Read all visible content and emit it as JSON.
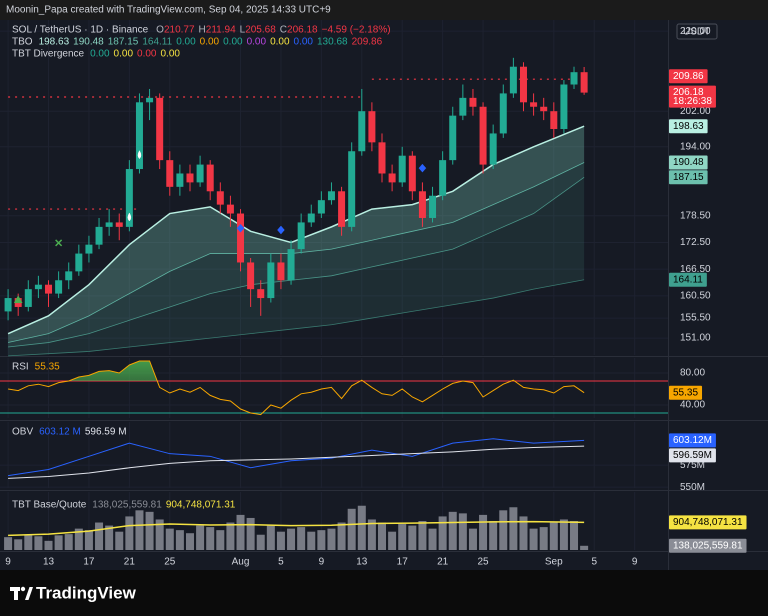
{
  "header": {
    "credit": "Moonin_Papa created with TradingView.com, Sep 04, 2025 14:33 UTC+9",
    "logo": "TradingView"
  },
  "chart_data": [
    {
      "type": "candlestick",
      "title": "SOL / TetherUS · 1D · Binance",
      "ohlc_legend": [
        [
          "O",
          "210.77"
        ],
        [
          "H",
          "211.94"
        ],
        [
          "L",
          "205.68"
        ],
        [
          "C",
          "206.18"
        ]
      ],
      "change": "−4.59 (−2.18%)",
      "open": [
        157,
        160,
        158,
        162,
        163,
        161,
        164,
        166,
        170,
        172,
        176,
        177,
        176,
        189,
        204,
        205,
        191,
        185,
        188,
        186,
        190,
        184,
        181,
        179,
        168,
        162,
        160,
        168,
        164,
        171,
        177,
        179,
        182,
        184,
        176,
        193,
        202,
        195,
        188,
        186,
        192,
        184,
        178,
        183,
        191,
        201,
        205,
        203,
        190,
        197,
        206,
        212,
        204,
        203,
        202,
        198,
        208,
        210.77
      ],
      "high": [
        162,
        161,
        164,
        165,
        164,
        166,
        168,
        172,
        174,
        178,
        180,
        179,
        191,
        206,
        207,
        206,
        193,
        190,
        190,
        192,
        191,
        186,
        183,
        180,
        169,
        164,
        170,
        170,
        173,
        179,
        181,
        184,
        186,
        185,
        195,
        207,
        204,
        197,
        190,
        194,
        193,
        186,
        185,
        193,
        203,
        208,
        207,
        204,
        199,
        208,
        214,
        213,
        206,
        205,
        204,
        209,
        212,
        211.94
      ],
      "low": [
        155,
        156,
        157,
        160,
        158,
        160,
        162,
        165,
        168,
        171,
        174,
        173,
        175,
        188,
        200,
        189,
        183,
        183,
        184,
        185,
        182,
        179,
        176,
        166,
        158,
        156,
        159,
        162,
        163,
        170,
        176,
        178,
        181,
        174,
        175,
        192,
        193,
        186,
        184,
        185,
        182,
        176,
        177,
        182,
        190,
        200,
        201,
        188,
        189,
        196,
        205,
        202,
        201,
        200,
        196,
        197,
        207,
        205.68
      ],
      "close": [
        160,
        158,
        162,
        163,
        161,
        164,
        166,
        170,
        172,
        176,
        177,
        176,
        189,
        204,
        205,
        191,
        185,
        188,
        186,
        190,
        184,
        181,
        179,
        168,
        162,
        160,
        168,
        164,
        171,
        177,
        179,
        182,
        184,
        176,
        193,
        202,
        195,
        188,
        186,
        192,
        184,
        178,
        183,
        191,
        201,
        205,
        203,
        190,
        197,
        206,
        212,
        204,
        203,
        202,
        198,
        208,
        210.77,
        206.18
      ],
      "up_color": "#22ab94",
      "down_color": "#f23645",
      "xlim": [
        -0.8,
        65.3
      ],
      "xticks": [
        {
          "value": 0,
          "label": "9"
        },
        {
          "value": 4,
          "label": "13"
        },
        {
          "value": 8,
          "label": "17"
        },
        {
          "value": 12,
          "label": "21"
        },
        {
          "value": 16,
          "label": "25"
        },
        {
          "value": 23,
          "label": "Aug"
        },
        {
          "value": 27,
          "label": "5"
        },
        {
          "value": 31,
          "label": "9"
        },
        {
          "value": 35,
          "label": "13"
        },
        {
          "value": 39,
          "label": "17"
        },
        {
          "value": 43,
          "label": "21"
        },
        {
          "value": 47,
          "label": "25"
        },
        {
          "value": 54,
          "label": "Sep"
        },
        {
          "value": 58,
          "label": "5"
        },
        {
          "value": 62,
          "label": "9"
        }
      ],
      "ylim": [
        147.2,
        222.5
      ],
      "yticks": [
        {
          "value": 220,
          "label": "220.00"
        },
        {
          "value": 202,
          "label": "202.00"
        },
        {
          "value": 194,
          "label": "194.00"
        },
        {
          "value": 178.5,
          "label": "178.50"
        },
        {
          "value": 172.5,
          "label": "172.50"
        },
        {
          "value": 166.5,
          "label": "166.50"
        },
        {
          "value": 160.5,
          "label": "160.50"
        },
        {
          "value": 155.5,
          "label": "155.50"
        },
        {
          "value": 151,
          "label": "151.00"
        }
      ],
      "currency": "USDT",
      "indicators": [
        {
          "name": "TBO",
          "values": [
            "198.63",
            "190.48",
            "187.15",
            "164.11",
            "0.00",
            "0.00",
            "0.00",
            "0.00",
            "0.00",
            "0.00",
            "130.68",
            "209.86"
          ],
          "colors": [
            "#b9efe2",
            "#8fd6c4",
            "#6cc0ad",
            "#3fa08f",
            "#22ab94",
            "#f7a600",
            "#22ab94",
            "#b845e0",
            "#f5e342",
            "#2962ff",
            "#22ab94",
            "#f23645"
          ]
        },
        {
          "name": "TBT Divergence",
          "values": [
            "0.00",
            "0.00",
            "0.00",
            "0.00"
          ],
          "colors": [
            "#22ab94",
            "#f5e342",
            "#f23645",
            "#f5e342"
          ]
        }
      ],
      "bands": {
        "x": [
          0,
          4,
          8,
          12,
          16,
          20,
          24,
          28,
          32,
          36,
          40,
          44,
          48,
          52,
          57
        ],
        "series": [
          {
            "color": "#b9efe2",
            "values": [
              152,
              156,
              163,
              172,
              179,
              180.5,
              175,
              172.5,
              176,
              180,
              181,
              184,
              190,
              194,
              198.63
            ]
          },
          {
            "color": "#5fb3a2",
            "values": [
              150,
              152,
              156,
              161,
              166,
              170,
              170,
              170,
              171,
              173,
              175,
              177,
              181,
              185,
              190.48
            ]
          },
          {
            "color": "#4a9588",
            "values": [
              149,
              150,
              152,
              155,
              158,
              161,
              163,
              164,
              165,
              167,
              169,
              171,
              175,
              179,
              187.15
            ]
          },
          {
            "color": "#3a7a70",
            "values": [
              147,
              147.5,
              148,
              149,
              150,
              151,
              152,
              153,
              154,
              155.5,
              157,
              158.5,
              160,
              162,
              164.11
            ]
          }
        ],
        "fill_colors": [
          "rgba(120,200,180,0.32)",
          "rgba(90,170,155,0.24)",
          "rgba(70,140,130,0.17)"
        ]
      },
      "price_tags": [
        {
          "value": 209.86,
          "color": "#f23645",
          "text_color": "#ffffff"
        },
        {
          "value": 206.18,
          "color": "#f23645",
          "text_color": "#ffffff",
          "countdown": "18:26:38"
        },
        {
          "value": 198.63,
          "color": "#b9efe2",
          "text_color": "#000000"
        },
        {
          "value": 190.48,
          "color": "#8fd6c4",
          "text_color": "#000000"
        },
        {
          "value": 187.15,
          "color": "#6cc0ad",
          "text_color": "#000000"
        },
        {
          "value": 164.11,
          "color": "#3fa08f",
          "text_color": "#000000"
        }
      ],
      "levels": [
        {
          "value": 205.2,
          "from": 0,
          "to": 35,
          "color": "#f23645"
        },
        {
          "value": 209.2,
          "from": 36,
          "to": 57,
          "color": "#f23645"
        },
        {
          "value": 180,
          "from": 0,
          "to": 13,
          "color": "#f23645"
        }
      ],
      "markers": [
        {
          "shape": "drop",
          "x": 13,
          "y": 192,
          "color": "#ffffff"
        },
        {
          "shape": "drop",
          "x": 12,
          "y": 178,
          "color": "#ffffff"
        },
        {
          "shape": "cross",
          "x": 5,
          "y": 172.4,
          "color": "#4caf50"
        },
        {
          "shape": "triangle",
          "x": 1,
          "y": 159.6,
          "color": "#4caf50"
        },
        {
          "shape": "diamond",
          "x": 23,
          "y": 175.7,
          "color": "#2962ff"
        },
        {
          "shape": "diamond",
          "x": 27,
          "y": 175.3,
          "color": "#2962ff"
        },
        {
          "shape": "diamond",
          "x": 41,
          "y": 189.2,
          "color": "#2962ff"
        }
      ]
    },
    {
      "type": "line",
      "title": "RSI",
      "series": [
        {
          "color": "#f7a600",
          "values": [
            60,
            58,
            64,
            66,
            63,
            68,
            70,
            75,
            77,
            82,
            83,
            80,
            90,
            95,
            95,
            62,
            55,
            60,
            56,
            62,
            52,
            47,
            45,
            35,
            30,
            28,
            40,
            36,
            46,
            54,
            56,
            60,
            62,
            48,
            64,
            71,
            62,
            54,
            52,
            60,
            50,
            44,
            52,
            60,
            67,
            70,
            68,
            50,
            58,
            66,
            71,
            62,
            60,
            59,
            55,
            63,
            64,
            55.35
          ]
        }
      ],
      "ylim": [
        23.75,
        98.75
      ],
      "yticks": [
        {
          "value": 80,
          "label": "80.00"
        },
        {
          "value": 40,
          "label": "40.00"
        }
      ],
      "levels": [
        {
          "value": 70,
          "color": "#f23645"
        },
        {
          "value": 30,
          "color": "#22ab94"
        }
      ],
      "overbought_fill": "#4caf50"
    },
    {
      "type": "line",
      "title": "OBV",
      "x": [
        0,
        4,
        8,
        12,
        16,
        20,
        24,
        28,
        32,
        36,
        40,
        44,
        48,
        52,
        57
      ],
      "series": [
        {
          "color": "#2962ff",
          "values": [
            563,
            570,
            585,
            600,
            588,
            585,
            572,
            580,
            583,
            592,
            585,
            600,
            605,
            600,
            603.12
          ],
          "legend": "603.12 M",
          "tag_label": "603.12M",
          "tag_text_color": "#ffffff"
        },
        {
          "color": "#e0e3eb",
          "values": [
            560,
            562,
            566,
            572,
            577,
            580,
            581,
            582,
            584,
            586,
            588,
            590,
            593,
            595,
            596.59
          ],
          "legend": "596.59 M",
          "tag_label": "596.59M",
          "tag_text_color": "#000000"
        }
      ],
      "ylim": [
        549,
        624
      ],
      "yticks": [
        {
          "value": 575,
          "label": "575M"
        },
        {
          "value": 550,
          "label": "550M"
        }
      ]
    },
    {
      "type": "volume",
      "title": "TBT Base/Quote",
      "bars": {
        "color": "#8a8d96",
        "values": [
          420000000,
          350000000,
          500000000,
          450000000,
          300000000,
          480000000,
          520000000,
          700000000,
          650000000,
          900000000,
          800000000,
          600000000,
          1100000000,
          1300000000,
          1250000000,
          1000000000,
          700000000,
          650000000,
          550000000,
          800000000,
          750000000,
          650000000,
          900000000,
          1150000000,
          1050000000,
          500000000,
          800000000,
          600000000,
          700000000,
          750000000,
          600000000,
          650000000,
          700000000,
          900000000,
          1350000000,
          1450000000,
          1000000000,
          900000000,
          600000000,
          850000000,
          800000000,
          950000000,
          700000000,
          1100000000,
          1250000000,
          1200000000,
          700000000,
          1150000000,
          950000000,
          1300000000,
          1400000000,
          1100000000,
          700000000,
          750000000,
          900000000,
          1000000000,
          950000000,
          138025559.81
        ],
        "tag_label": "138,025,559.81",
        "tag_text_color": "#ffffff"
      },
      "line": {
        "color": "#f5e342",
        "x": [
          0,
          4,
          8,
          12,
          16,
          20,
          24,
          28,
          32,
          36,
          40,
          44,
          48,
          52,
          57
        ],
        "values": [
          480000000,
          520000000,
          620000000,
          800000000,
          850000000,
          820000000,
          830000000,
          800000000,
          810000000,
          870000000,
          880000000,
          900000000,
          920000000,
          930000000,
          904748071.31
        ],
        "tag_label": "904,748,071.31",
        "tag_text_color": "#000000"
      },
      "ylim": [
        0,
        1900000000
      ]
    }
  ]
}
